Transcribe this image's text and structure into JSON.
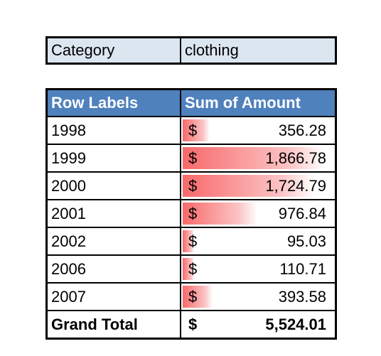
{
  "filter": {
    "label": "Category",
    "value": "clothing"
  },
  "pivot": {
    "headers": {
      "row_labels": "Row Labels",
      "sum": "Sum of Amount"
    },
    "rows": [
      {
        "year": "1998",
        "currency": "$",
        "amount": "356.28",
        "value": 356.28
      },
      {
        "year": "1999",
        "currency": "$",
        "amount": "1,866.78",
        "value": 1866.78
      },
      {
        "year": "2000",
        "currency": "$",
        "amount": "1,724.79",
        "value": 1724.79
      },
      {
        "year": "2001",
        "currency": "$",
        "amount": "976.84",
        "value": 976.84
      },
      {
        "year": "2002",
        "currency": "$",
        "amount": "95.03",
        "value": 95.03
      },
      {
        "year": "2006",
        "currency": "$",
        "amount": "110.71",
        "value": 110.71
      },
      {
        "year": "2007",
        "currency": "$",
        "amount": "393.58",
        "value": 393.58
      }
    ],
    "total": {
      "label": "Grand Total",
      "currency": "$",
      "amount": "5,524.01"
    }
  },
  "colors": {
    "header_bg": "#4f81bd",
    "filter_bg": "#dce6f1",
    "databar": "#f8696b"
  }
}
